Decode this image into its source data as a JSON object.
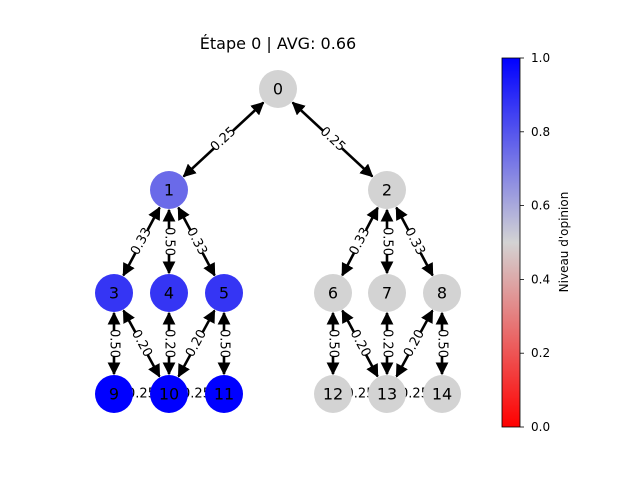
{
  "title": "Étape 0 | AVG: 0.66",
  "colorbar": {
    "label": "Niveau d'opinion",
    "ticks": [
      "0.0",
      "0.2",
      "0.4",
      "0.6",
      "0.8",
      "1.0"
    ],
    "low_color": "#ff0000",
    "mid_color": "#d3d3d3",
    "high_color": "#0000ff"
  },
  "nodes": [
    {
      "label": "0",
      "opinion": 0.5
    },
    {
      "label": "1",
      "opinion": 0.75
    },
    {
      "label": "2",
      "opinion": 0.5
    },
    {
      "label": "3",
      "opinion": 0.875
    },
    {
      "label": "4",
      "opinion": 0.875
    },
    {
      "label": "5",
      "opinion": 0.875
    },
    {
      "label": "6",
      "opinion": 0.5
    },
    {
      "label": "7",
      "opinion": 0.5
    },
    {
      "label": "8",
      "opinion": 0.5
    },
    {
      "label": "9",
      "opinion": 1.0
    },
    {
      "label": "10",
      "opinion": 1.0
    },
    {
      "label": "11",
      "opinion": 1.0
    },
    {
      "label": "12",
      "opinion": 0.5
    },
    {
      "label": "13",
      "opinion": 0.5
    },
    {
      "label": "14",
      "opinion": 0.5
    }
  ],
  "edges": [
    {
      "source": "0",
      "target": "1",
      "weight": "0.25"
    },
    {
      "source": "0",
      "target": "2",
      "weight": "0.25"
    },
    {
      "source": "1",
      "target": "3",
      "weight": "0.33"
    },
    {
      "source": "1",
      "target": "4",
      "weight": "0.50"
    },
    {
      "source": "1",
      "target": "5",
      "weight": "0.33"
    },
    {
      "source": "2",
      "target": "6",
      "weight": "0.33"
    },
    {
      "source": "2",
      "target": "7",
      "weight": "0.50"
    },
    {
      "source": "2",
      "target": "8",
      "weight": "0.33"
    },
    {
      "source": "3",
      "target": "9",
      "weight": "0.50"
    },
    {
      "source": "3",
      "target": "10",
      "weight": "0.20"
    },
    {
      "source": "4",
      "target": "10",
      "weight": "0.20"
    },
    {
      "source": "5",
      "target": "10",
      "weight": "0.20"
    },
    {
      "source": "5",
      "target": "11",
      "weight": "0.50"
    },
    {
      "source": "6",
      "target": "12",
      "weight": "0.50"
    },
    {
      "source": "6",
      "target": "13",
      "weight": "0.20"
    },
    {
      "source": "7",
      "target": "13",
      "weight": "0.20"
    },
    {
      "source": "8",
      "target": "13",
      "weight": "0.20"
    },
    {
      "source": "8",
      "target": "14",
      "weight": "0.50"
    },
    {
      "source": "9",
      "target": "10",
      "weight": "0.25"
    },
    {
      "source": "10",
      "target": "11",
      "weight": "0.25"
    },
    {
      "source": "12",
      "target": "13",
      "weight": "0.25"
    },
    {
      "source": "13",
      "target": "14",
      "weight": "0.25"
    }
  ]
}
